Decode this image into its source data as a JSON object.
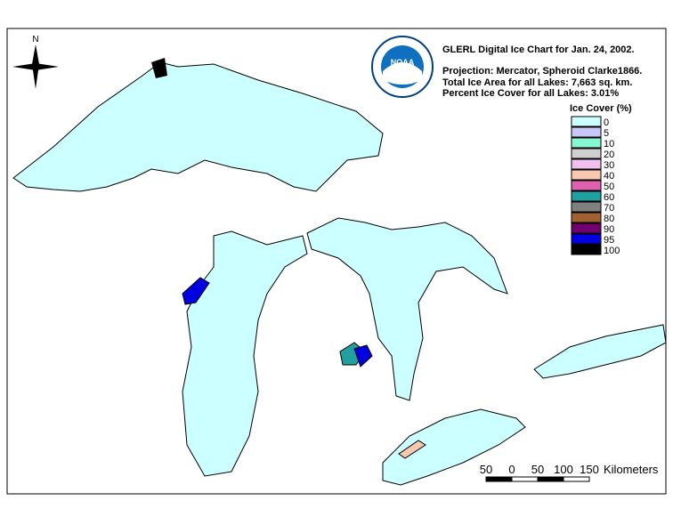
{
  "header": {
    "title": "GLERL Digital Ice Chart for Jan. 24, 2002.",
    "projection": "Projection:  Mercator, Spheroid Clarke1866.",
    "total_area": "Total Ice Area for all Lakes: 7,663 sq. km.",
    "percent_cover": "Percent Ice Cover for all Lakes:  3.01%"
  },
  "logo": {
    "text": "NOAA"
  },
  "compass": {
    "label": "N"
  },
  "legend": {
    "title": "Ice Cover (%)",
    "items": [
      {
        "label": "0",
        "color": "#ccffff"
      },
      {
        "label": "5",
        "color": "#c8c8f8"
      },
      {
        "label": "10",
        "color": "#88f8d0"
      },
      {
        "label": "20",
        "color": "#d0d0d0"
      },
      {
        "label": "30",
        "color": "#f0c0f0"
      },
      {
        "label": "40",
        "color": "#f8c8b0"
      },
      {
        "label": "50",
        "color": "#e060b0"
      },
      {
        "label": "60",
        "color": "#20a0a0"
      },
      {
        "label": "70",
        "color": "#808080"
      },
      {
        "label": "80",
        "color": "#a06030"
      },
      {
        "label": "90",
        "color": "#700070"
      },
      {
        "label": "95",
        "color": "#0000e0"
      },
      {
        "label": "100",
        "color": "#000000"
      }
    ]
  },
  "scale": {
    "labels": [
      "50",
      "0",
      "50",
      "100",
      "150"
    ],
    "unit": "Kilometers"
  }
}
